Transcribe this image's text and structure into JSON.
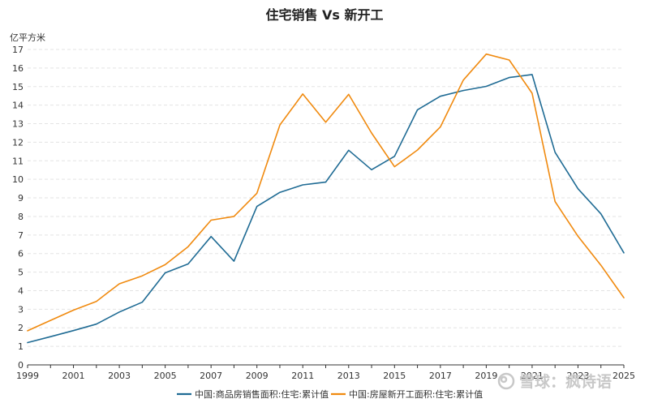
{
  "chart_data": {
    "type": "line",
    "title": "住宅销售 Vs 新开工",
    "ylabel": "亿平方米",
    "xlabel": "",
    "ylim": [
      0,
      17
    ],
    "yticks": [
      0,
      1,
      2,
      3,
      4,
      5,
      6,
      7,
      8,
      9,
      10,
      11,
      12,
      13,
      14,
      15,
      16,
      17
    ],
    "xlim": [
      1999,
      2025
    ],
    "xticks": [
      1999,
      2001,
      2003,
      2005,
      2007,
      2009,
      2011,
      2013,
      2015,
      2017,
      2019,
      2021,
      2023,
      2025
    ],
    "grid": "horizontal-dashed",
    "legend_position": "bottom",
    "x": [
      1999,
      2000,
      2001,
      2002,
      2003,
      2004,
      2005,
      2006,
      2007,
      2008,
      2009,
      2010,
      2011,
      2012,
      2013,
      2014,
      2015,
      2016,
      2017,
      2018,
      2019,
      2020,
      2021,
      2022,
      2023,
      2024,
      2025
    ],
    "series": [
      {
        "name": "中国:商品房销售面积:住宅:累计值",
        "color": "#1f6b94",
        "values": [
          1.2,
          1.52,
          1.85,
          2.2,
          2.85,
          3.38,
          4.96,
          5.44,
          6.92,
          5.59,
          8.54,
          9.3,
          9.7,
          9.85,
          11.57,
          10.52,
          11.24,
          13.75,
          14.48,
          14.79,
          15.01,
          15.49,
          15.65,
          11.46,
          9.49,
          8.14,
          6.04
        ]
      },
      {
        "name": "中国:房屋新开工面积:住宅:累计值",
        "color": "#f08a0f",
        "values": [
          1.84,
          2.4,
          2.95,
          3.42,
          4.37,
          4.8,
          5.4,
          6.37,
          7.8,
          8.0,
          9.25,
          12.93,
          14.6,
          13.08,
          14.58,
          12.5,
          10.68,
          11.58,
          12.82,
          15.35,
          16.75,
          16.43,
          14.64,
          8.8,
          6.93,
          5.37,
          3.62
        ]
      }
    ]
  },
  "watermark": {
    "icon": "snowball-logo",
    "text": "雪球：疯诗语"
  }
}
